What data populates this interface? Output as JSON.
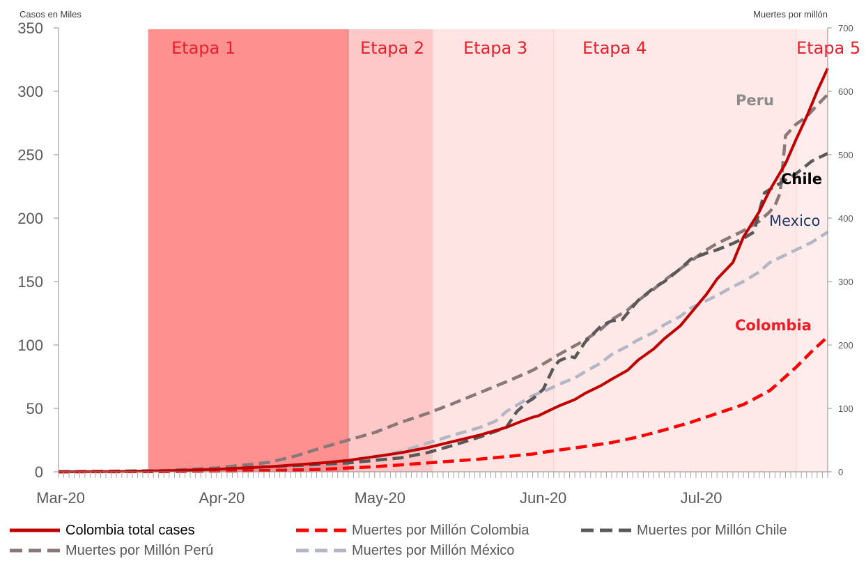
{
  "chart_data": {
    "type": "line",
    "y_axis_left": {
      "label": "Casos en Miles",
      "range": [
        0,
        350
      ],
      "ticks": [
        0,
        50,
        100,
        150,
        200,
        250,
        300,
        350
      ]
    },
    "y_axis_right": {
      "label": "Muertes por millón",
      "range": [
        0,
        700
      ],
      "ticks": [
        0,
        100,
        200,
        300,
        400,
        500,
        600,
        700
      ]
    },
    "x_axis": {
      "ticks": [
        "Mar-20",
        "Apr-20",
        "May-20",
        "Jun-20",
        "Jul-20"
      ],
      "range_days": [
        0,
        146
      ]
    },
    "stages": [
      {
        "label": "Etapa 1",
        "start_day": 17,
        "end_day": 55,
        "color": "#ff9090"
      },
      {
        "label": "Etapa 2",
        "start_day": 55,
        "end_day": 71,
        "color": "#ffc8c8"
      },
      {
        "label": "Etapa 3",
        "start_day": 71,
        "end_day": 94,
        "color": "#ffe4e4"
      },
      {
        "label": "Etapa 4",
        "start_day": 94,
        "end_day": 140,
        "color": "#ffe8e8"
      },
      {
        "label": "Etapa 5",
        "start_day": 140,
        "end_day": 146,
        "color": "#ffeded"
      }
    ],
    "annotations": [
      {
        "text": "Peru",
        "color": "#8c8c8c"
      },
      {
        "text": "Chile",
        "color": "#000000"
      },
      {
        "text": "Mexico",
        "color": "#1f3864"
      },
      {
        "text": "Colombia",
        "color": "#ee1c25"
      }
    ],
    "series": [
      {
        "name": "Colombia total cases",
        "axis": "left",
        "color": "#c00000",
        "dash": "solid",
        "points": [
          [
            0,
            0
          ],
          [
            10,
            0.1
          ],
          [
            20,
            0.8
          ],
          [
            30,
            2.0
          ],
          [
            40,
            4.0
          ],
          [
            50,
            7.0
          ],
          [
            55,
            9
          ],
          [
            60,
            12
          ],
          [
            65,
            15
          ],
          [
            70,
            19
          ],
          [
            75,
            24
          ],
          [
            80,
            29
          ],
          [
            85,
            35
          ],
          [
            88,
            40
          ],
          [
            90,
            43
          ],
          [
            91,
            44
          ],
          [
            93,
            48
          ],
          [
            95,
            52
          ],
          [
            98,
            57
          ],
          [
            100,
            62
          ],
          [
            103,
            68
          ],
          [
            105,
            73
          ],
          [
            108,
            80
          ],
          [
            110,
            88
          ],
          [
            113,
            97
          ],
          [
            115,
            105
          ],
          [
            118,
            115
          ],
          [
            120,
            125
          ],
          [
            123,
            140
          ],
          [
            125,
            152
          ],
          [
            128,
            165
          ],
          [
            130,
            185
          ],
          [
            133,
            205
          ],
          [
            135,
            222
          ],
          [
            138,
            243
          ],
          [
            140,
            262
          ],
          [
            142,
            280
          ],
          [
            144,
            300
          ],
          [
            146,
            318
          ]
        ]
      },
      {
        "name": "Muertes por Millón Colombia",
        "axis": "right",
        "color": "#ff0000",
        "dash": "dashed",
        "points": [
          [
            0,
            0
          ],
          [
            20,
            0.3
          ],
          [
            40,
            2
          ],
          [
            50,
            4
          ],
          [
            60,
            8
          ],
          [
            70,
            14
          ],
          [
            80,
            20
          ],
          [
            85,
            24
          ],
          [
            90,
            28
          ],
          [
            93,
            32
          ],
          [
            100,
            40
          ],
          [
            105,
            46
          ],
          [
            110,
            55
          ],
          [
            115,
            66
          ],
          [
            120,
            78
          ],
          [
            125,
            92
          ],
          [
            130,
            106
          ],
          [
            135,
            128
          ],
          [
            138,
            150
          ],
          [
            140,
            165
          ],
          [
            143,
            190
          ],
          [
            146,
            213
          ]
        ]
      },
      {
        "name": "Muertes por Millón Chile",
        "axis": "right",
        "color": "#595959",
        "dash": "dashed",
        "points": [
          [
            0,
            0
          ],
          [
            20,
            1
          ],
          [
            30,
            4
          ],
          [
            40,
            8
          ],
          [
            50,
            12
          ],
          [
            55,
            14
          ],
          [
            60,
            18
          ],
          [
            65,
            22
          ],
          [
            70,
            30
          ],
          [
            75,
            42
          ],
          [
            80,
            55
          ],
          [
            85,
            70
          ],
          [
            87,
            95
          ],
          [
            89,
            110
          ],
          [
            90,
            115
          ],
          [
            92,
            130
          ],
          [
            94,
            165
          ],
          [
            95,
            175
          ],
          [
            97,
            182
          ],
          [
            98,
            180
          ],
          [
            100,
            205
          ],
          [
            103,
            230
          ],
          [
            105,
            238
          ],
          [
            107,
            240
          ],
          [
            110,
            270
          ],
          [
            113,
            290
          ],
          [
            115,
            300
          ],
          [
            118,
            320
          ],
          [
            120,
            335
          ],
          [
            123,
            345
          ],
          [
            125,
            350
          ],
          [
            128,
            360
          ],
          [
            130,
            368
          ],
          [
            132,
            378
          ],
          [
            133,
            410
          ],
          [
            134,
            440
          ],
          [
            137,
            455
          ],
          [
            140,
            470
          ],
          [
            143,
            490
          ],
          [
            146,
            502
          ]
        ]
      },
      {
        "name": "Muertes por Millón Perú",
        "axis": "right",
        "color": "#8a7777",
        "dash": "dashed",
        "points": [
          [
            0,
            0
          ],
          [
            20,
            2
          ],
          [
            30,
            6
          ],
          [
            40,
            15
          ],
          [
            45,
            25
          ],
          [
            50,
            38
          ],
          [
            55,
            50
          ],
          [
            60,
            62
          ],
          [
            65,
            78
          ],
          [
            70,
            92
          ],
          [
            75,
            108
          ],
          [
            80,
            125
          ],
          [
            85,
            142
          ],
          [
            90,
            160
          ],
          [
            95,
            185
          ],
          [
            100,
            208
          ],
          [
            103,
            225
          ],
          [
            105,
            240
          ],
          [
            108,
            255
          ],
          [
            110,
            270
          ],
          [
            113,
            288
          ],
          [
            115,
            302
          ],
          [
            118,
            320
          ],
          [
            120,
            332
          ],
          [
            123,
            350
          ],
          [
            125,
            360
          ],
          [
            128,
            372
          ],
          [
            130,
            380
          ],
          [
            133,
            395
          ],
          [
            135,
            410
          ],
          [
            136,
            420
          ],
          [
            137,
            440
          ],
          [
            138,
            530
          ],
          [
            140,
            548
          ],
          [
            142,
            560
          ],
          [
            144,
            578
          ],
          [
            146,
            595
          ]
        ]
      },
      {
        "name": "Muertes por Millón México",
        "axis": "right",
        "color": "#b3b6c4",
        "dash": "dashed",
        "points": [
          [
            0,
            0
          ],
          [
            20,
            1
          ],
          [
            30,
            3
          ],
          [
            40,
            6
          ],
          [
            50,
            10
          ],
          [
            55,
            14
          ],
          [
            60,
            22
          ],
          [
            65,
            32
          ],
          [
            70,
            45
          ],
          [
            75,
            58
          ],
          [
            80,
            70
          ],
          [
            83,
            80
          ],
          [
            85,
            95
          ],
          [
            88,
            110
          ],
          [
            90,
            120
          ],
          [
            93,
            130
          ],
          [
            95,
            138
          ],
          [
            98,
            148
          ],
          [
            100,
            158
          ],
          [
            103,
            172
          ],
          [
            105,
            185
          ],
          [
            108,
            198
          ],
          [
            110,
            208
          ],
          [
            113,
            220
          ],
          [
            115,
            232
          ],
          [
            118,
            245
          ],
          [
            120,
            258
          ],
          [
            123,
            270
          ],
          [
            125,
            278
          ],
          [
            128,
            292
          ],
          [
            130,
            300
          ],
          [
            133,
            315
          ],
          [
            135,
            330
          ],
          [
            138,
            342
          ],
          [
            140,
            350
          ],
          [
            143,
            362
          ],
          [
            146,
            378
          ]
        ]
      }
    ]
  }
}
